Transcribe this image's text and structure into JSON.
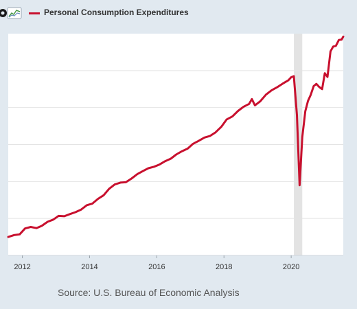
{
  "legend": {
    "label": "Personal Consumption Expenditures",
    "color": "#c8102e"
  },
  "logo_icon": "fred-logo-icon",
  "source": "Source: U.S. Bureau of Economic Analysis",
  "chart_data": {
    "type": "line",
    "title": "",
    "xlabel": "",
    "ylabel": "",
    "x_ticks": [
      "2012",
      "2014",
      "2016",
      "2018",
      "2020"
    ],
    "recession": {
      "start": 2020.08,
      "end": 2020.33
    },
    "grid": "horizontal",
    "xlim": [
      2011.58,
      2021.55
    ],
    "ylim": [
      0,
      6
    ],
    "series": [
      {
        "name": "Personal Consumption Expenditures",
        "color": "#c8102e",
        "points": [
          [
            2011.58,
            0.5
          ],
          [
            2011.75,
            0.55
          ],
          [
            2011.92,
            0.57
          ],
          [
            2012.08,
            0.73
          ],
          [
            2012.25,
            0.77
          ],
          [
            2012.42,
            0.74
          ],
          [
            2012.58,
            0.8
          ],
          [
            2012.75,
            0.91
          ],
          [
            2012.92,
            0.97
          ],
          [
            2013.08,
            1.07
          ],
          [
            2013.25,
            1.06
          ],
          [
            2013.42,
            1.12
          ],
          [
            2013.58,
            1.17
          ],
          [
            2013.75,
            1.24
          ],
          [
            2013.92,
            1.36
          ],
          [
            2014.08,
            1.4
          ],
          [
            2014.25,
            1.53
          ],
          [
            2014.42,
            1.63
          ],
          [
            2014.58,
            1.8
          ],
          [
            2014.75,
            1.92
          ],
          [
            2014.92,
            1.97
          ],
          [
            2015.08,
            1.98
          ],
          [
            2015.25,
            2.08
          ],
          [
            2015.42,
            2.2
          ],
          [
            2015.58,
            2.28
          ],
          [
            2015.75,
            2.36
          ],
          [
            2015.92,
            2.4
          ],
          [
            2016.08,
            2.46
          ],
          [
            2016.25,
            2.55
          ],
          [
            2016.42,
            2.62
          ],
          [
            2016.58,
            2.73
          ],
          [
            2016.75,
            2.82
          ],
          [
            2016.92,
            2.89
          ],
          [
            2017.08,
            3.02
          ],
          [
            2017.25,
            3.1
          ],
          [
            2017.42,
            3.19
          ],
          [
            2017.58,
            3.23
          ],
          [
            2017.75,
            3.33
          ],
          [
            2017.92,
            3.48
          ],
          [
            2018.08,
            3.68
          ],
          [
            2018.25,
            3.76
          ],
          [
            2018.42,
            3.91
          ],
          [
            2018.58,
            4.02
          ],
          [
            2018.75,
            4.1
          ],
          [
            2018.83,
            4.23
          ],
          [
            2018.92,
            4.06
          ],
          [
            2019.08,
            4.17
          ],
          [
            2019.25,
            4.35
          ],
          [
            2019.42,
            4.47
          ],
          [
            2019.58,
            4.55
          ],
          [
            2019.75,
            4.65
          ],
          [
            2019.92,
            4.74
          ],
          [
            2020.0,
            4.82
          ],
          [
            2020.08,
            4.85
          ],
          [
            2020.17,
            3.8
          ],
          [
            2020.25,
            1.9
          ],
          [
            2020.33,
            3.2
          ],
          [
            2020.42,
            3.9
          ],
          [
            2020.5,
            4.18
          ],
          [
            2020.58,
            4.34
          ],
          [
            2020.67,
            4.58
          ],
          [
            2020.75,
            4.64
          ],
          [
            2020.83,
            4.56
          ],
          [
            2020.92,
            4.5
          ],
          [
            2021.0,
            4.93
          ],
          [
            2021.08,
            4.83
          ],
          [
            2021.17,
            5.52
          ],
          [
            2021.25,
            5.65
          ],
          [
            2021.33,
            5.67
          ],
          [
            2021.42,
            5.83
          ],
          [
            2021.5,
            5.84
          ],
          [
            2021.55,
            5.92
          ]
        ]
      }
    ]
  }
}
